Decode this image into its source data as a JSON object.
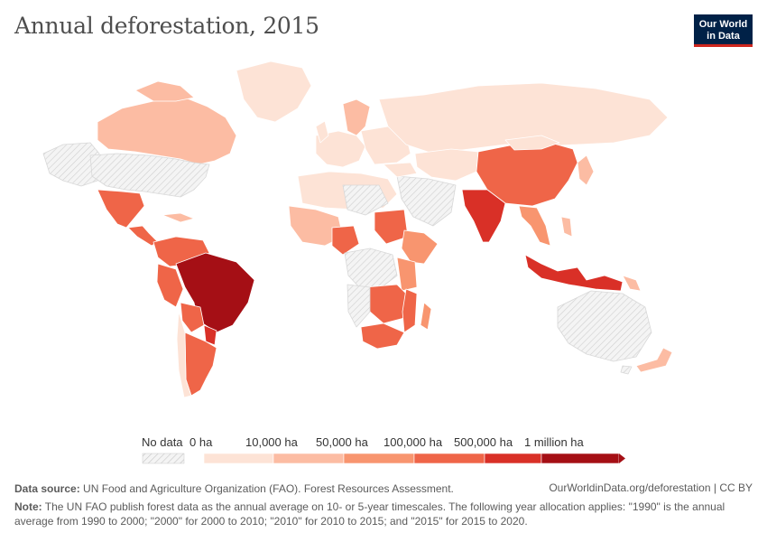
{
  "header": {
    "title": "Annual deforestation, 2015",
    "logo_line1": "Our World",
    "logo_line2": "in Data"
  },
  "colors": {
    "no_data": "#e8e8e8",
    "bin0": "#fde3d6",
    "bin1": "#fcbca3",
    "bin2": "#f8956f",
    "bin3": "#ef6548",
    "bin4": "#d93027",
    "bin5": "#a50f15",
    "border": "#ffffff"
  },
  "legend": {
    "no_data_label": "No data",
    "bin_labels": [
      "0 ha",
      "10,000 ha",
      "50,000 ha",
      "100,000 ha",
      "500,000 ha",
      "1 million ha"
    ]
  },
  "footer": {
    "source_label": "Data source:",
    "source_text": "UN Food and Agriculture Organization (FAO). Forest Resources Assessment.",
    "link_text": "OurWorldinData.org/deforestation | CC BY",
    "note_label": "Note:",
    "note_text": "The UN FAO publish forest data as the annual average on 10- or 5-year timescales. The following year allocation applies: \"1990\" is the annual average from 1990 to 2000; \"2000\" for 2000 to 2010; \"2010\" for 2010 to 2015; and \"2015\" for 2015 to 2020."
  }
}
